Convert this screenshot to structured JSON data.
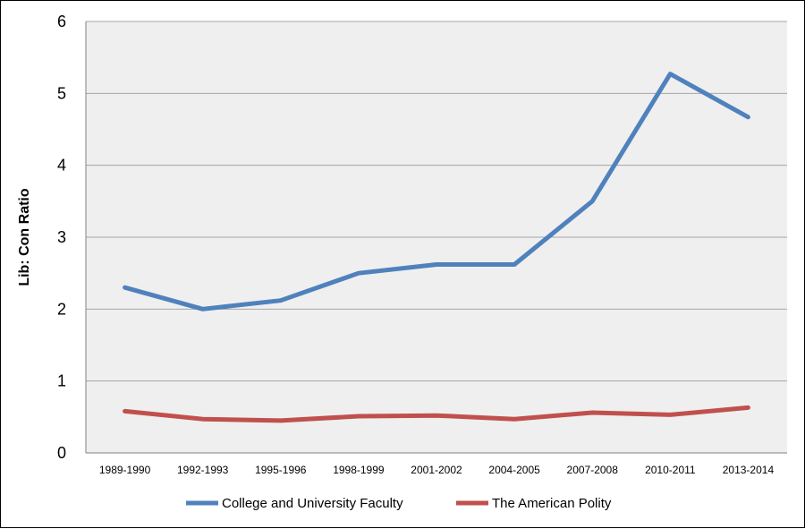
{
  "chart_data": {
    "type": "line",
    "title": "",
    "xlabel": "",
    "ylabel": "Lib: Con Ratio",
    "ylim": [
      0,
      6
    ],
    "yticks": [
      "0",
      "1",
      "2",
      "3",
      "4",
      "5",
      "6"
    ],
    "categories": [
      "1989-1990",
      "1992-1993",
      "1995-1996",
      "1998-1999",
      "2001-2002",
      "2004-2005",
      "2007-2008",
      "2010-2011",
      "2013-2014"
    ],
    "series": [
      {
        "name": "College and University Faculty",
        "color": "#4f81bd",
        "values": [
          2.3,
          2.0,
          2.12,
          2.5,
          2.62,
          2.62,
          3.5,
          5.27,
          4.67
        ]
      },
      {
        "name": "The American Polity",
        "color": "#c0504d",
        "values": [
          0.58,
          0.47,
          0.45,
          0.51,
          0.52,
          0.47,
          0.56,
          0.53,
          0.63
        ]
      }
    ],
    "grid": true,
    "legend": "bottom",
    "plot_background": "#efefef"
  }
}
